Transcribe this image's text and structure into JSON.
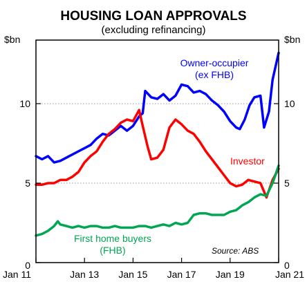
{
  "chart_data": {
    "type": "line",
    "title": "HOUSING LOAN APPROVALS",
    "subtitle": "(excluding refinancing)",
    "y_unit_left": "$bn",
    "y_unit_right": "$bn",
    "source": "Source: ABS",
    "ylim": [
      0,
      14
    ],
    "y_ticks": [
      0,
      5,
      10
    ],
    "y_tick_labels": [
      "0",
      "5",
      "10"
    ],
    "xlim": [
      2011.0,
      2021.0
    ],
    "x_ticks": [
      2011,
      2013,
      2015,
      2017,
      2019,
      2021
    ],
    "x_tick_labels": [
      "Jan 11",
      "Jan 13",
      "Jan 15",
      "Jan 17",
      "Jan 19",
      "Jan 21"
    ],
    "grid": "horizontal dotted at 5 and 10",
    "series": [
      {
        "label_lines": [
          "Owner-occupier",
          "(ex FHB)"
        ],
        "color": "#0000ff",
        "points": [
          [
            2011.0,
            6.7
          ],
          [
            2011.25,
            6.5
          ],
          [
            2011.5,
            6.7
          ],
          [
            2011.75,
            6.3
          ],
          [
            2012.0,
            6.4
          ],
          [
            2012.25,
            6.6
          ],
          [
            2012.5,
            6.8
          ],
          [
            2012.75,
            7.0
          ],
          [
            2013.0,
            7.2
          ],
          [
            2013.25,
            7.4
          ],
          [
            2013.5,
            7.8
          ],
          [
            2013.75,
            8.1
          ],
          [
            2014.0,
            8.0
          ],
          [
            2014.25,
            8.3
          ],
          [
            2014.5,
            8.6
          ],
          [
            2014.75,
            8.3
          ],
          [
            2015.0,
            8.6
          ],
          [
            2015.25,
            9.2
          ],
          [
            2015.4,
            9.4
          ],
          [
            2015.5,
            10.8
          ],
          [
            2015.75,
            10.4
          ],
          [
            2016.0,
            10.3
          ],
          [
            2016.25,
            10.6
          ],
          [
            2016.5,
            10.2
          ],
          [
            2016.75,
            10.5
          ],
          [
            2017.0,
            11.2
          ],
          [
            2017.25,
            11.1
          ],
          [
            2017.5,
            10.7
          ],
          [
            2017.75,
            10.8
          ],
          [
            2018.0,
            10.6
          ],
          [
            2018.25,
            10.2
          ],
          [
            2018.5,
            9.9
          ],
          [
            2018.75,
            9.5
          ],
          [
            2019.0,
            8.9
          ],
          [
            2019.25,
            8.5
          ],
          [
            2019.4,
            8.4
          ],
          [
            2019.6,
            9.0
          ],
          [
            2019.8,
            9.9
          ],
          [
            2020.0,
            10.4
          ],
          [
            2020.25,
            10.5
          ],
          [
            2020.4,
            8.5
          ],
          [
            2020.6,
            9.5
          ],
          [
            2020.75,
            11.5
          ],
          [
            2021.0,
            13.2
          ]
        ]
      },
      {
        "label_lines": [
          "Investor"
        ],
        "color": "#ff0000",
        "points": [
          [
            2011.0,
            4.9
          ],
          [
            2011.25,
            4.9
          ],
          [
            2011.5,
            5.0
          ],
          [
            2011.75,
            5.0
          ],
          [
            2012.0,
            5.2
          ],
          [
            2012.25,
            5.2
          ],
          [
            2012.5,
            5.4
          ],
          [
            2012.75,
            5.7
          ],
          [
            2013.0,
            6.3
          ],
          [
            2013.25,
            6.7
          ],
          [
            2013.5,
            7.0
          ],
          [
            2013.75,
            7.6
          ],
          [
            2014.0,
            8.1
          ],
          [
            2014.25,
            8.4
          ],
          [
            2014.5,
            8.8
          ],
          [
            2014.75,
            9.0
          ],
          [
            2015.0,
            8.9
          ],
          [
            2015.25,
            9.6
          ],
          [
            2015.4,
            8.6
          ],
          [
            2015.6,
            7.3
          ],
          [
            2015.75,
            6.5
          ],
          [
            2016.0,
            6.6
          ],
          [
            2016.25,
            7.1
          ],
          [
            2016.5,
            8.5
          ],
          [
            2016.75,
            9.0
          ],
          [
            2017.0,
            8.7
          ],
          [
            2017.25,
            8.3
          ],
          [
            2017.5,
            8.1
          ],
          [
            2017.75,
            7.6
          ],
          [
            2018.0,
            7.0
          ],
          [
            2018.25,
            6.5
          ],
          [
            2018.5,
            6.0
          ],
          [
            2018.75,
            5.5
          ],
          [
            2019.0,
            5.0
          ],
          [
            2019.25,
            4.8
          ],
          [
            2019.5,
            4.9
          ],
          [
            2019.75,
            5.2
          ],
          [
            2020.0,
            5.1
          ],
          [
            2020.25,
            5.0
          ],
          [
            2020.5,
            4.1
          ],
          [
            2020.75,
            5.2
          ],
          [
            2021.0,
            5.9
          ]
        ]
      },
      {
        "label_lines": [
          "First home  buyers",
          "(FHB)"
        ],
        "color": "#00a651",
        "points": [
          [
            2011.0,
            1.7
          ],
          [
            2011.25,
            1.8
          ],
          [
            2011.5,
            2.0
          ],
          [
            2011.75,
            2.3
          ],
          [
            2011.9,
            2.6
          ],
          [
            2012.0,
            2.4
          ],
          [
            2012.25,
            2.3
          ],
          [
            2012.5,
            2.2
          ],
          [
            2012.75,
            2.3
          ],
          [
            2013.0,
            2.2
          ],
          [
            2013.25,
            2.3
          ],
          [
            2013.5,
            2.3
          ],
          [
            2013.75,
            2.2
          ],
          [
            2014.0,
            2.2
          ],
          [
            2014.25,
            2.3
          ],
          [
            2014.5,
            2.2
          ],
          [
            2014.75,
            2.2
          ],
          [
            2015.0,
            2.2
          ],
          [
            2015.25,
            2.3
          ],
          [
            2015.5,
            2.3
          ],
          [
            2015.75,
            2.2
          ],
          [
            2016.0,
            2.3
          ],
          [
            2016.25,
            2.4
          ],
          [
            2016.5,
            2.3
          ],
          [
            2016.75,
            2.5
          ],
          [
            2017.0,
            2.4
          ],
          [
            2017.25,
            2.5
          ],
          [
            2017.5,
            3.0
          ],
          [
            2017.75,
            3.1
          ],
          [
            2018.0,
            3.1
          ],
          [
            2018.25,
            3.0
          ],
          [
            2018.5,
            3.0
          ],
          [
            2018.75,
            3.0
          ],
          [
            2019.0,
            3.2
          ],
          [
            2019.25,
            3.3
          ],
          [
            2019.5,
            3.6
          ],
          [
            2019.75,
            3.8
          ],
          [
            2020.0,
            4.1
          ],
          [
            2020.25,
            4.3
          ],
          [
            2020.5,
            4.2
          ],
          [
            2020.75,
            5.0
          ],
          [
            2021.0,
            6.1
          ]
        ]
      }
    ]
  }
}
